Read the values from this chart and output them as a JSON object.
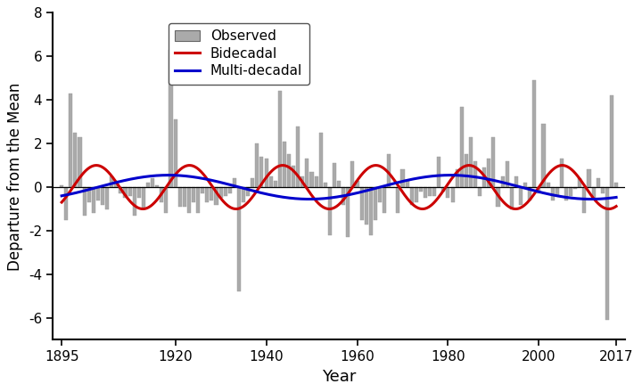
{
  "years": [
    1895,
    1896,
    1897,
    1898,
    1899,
    1900,
    1901,
    1902,
    1903,
    1904,
    1905,
    1906,
    1907,
    1908,
    1909,
    1910,
    1911,
    1912,
    1913,
    1914,
    1915,
    1916,
    1917,
    1918,
    1919,
    1920,
    1921,
    1922,
    1923,
    1924,
    1925,
    1926,
    1927,
    1928,
    1929,
    1930,
    1931,
    1932,
    1933,
    1934,
    1935,
    1936,
    1937,
    1938,
    1939,
    1940,
    1941,
    1942,
    1943,
    1944,
    1945,
    1946,
    1947,
    1948,
    1949,
    1950,
    1951,
    1952,
    1953,
    1954,
    1955,
    1956,
    1957,
    1958,
    1959,
    1960,
    1961,
    1962,
    1963,
    1964,
    1965,
    1966,
    1967,
    1968,
    1969,
    1970,
    1971,
    1972,
    1973,
    1974,
    1975,
    1976,
    1977,
    1978,
    1979,
    1980,
    1981,
    1982,
    1983,
    1984,
    1985,
    1986,
    1987,
    1988,
    1989,
    1990,
    1991,
    1992,
    1993,
    1994,
    1995,
    1996,
    1997,
    1998,
    1999,
    2000,
    2001,
    2002,
    2003,
    2004,
    2005,
    2006,
    2007,
    2008,
    2009,
    2010,
    2011,
    2012,
    2013,
    2014,
    2015,
    2016,
    2017
  ],
  "observed": [
    0.1,
    -1.5,
    4.3,
    2.5,
    2.3,
    -1.3,
    -0.7,
    -1.2,
    -0.6,
    -0.8,
    -1.0,
    0.5,
    0.3,
    -0.3,
    -0.5,
    -0.4,
    -1.3,
    -0.5,
    -1.0,
    0.2,
    0.4,
    0.1,
    -0.7,
    -1.2,
    6.3,
    3.1,
    -0.9,
    -0.9,
    -1.2,
    -0.7,
    -1.2,
    -0.3,
    -0.7,
    -0.6,
    -0.8,
    -0.5,
    -0.4,
    -0.3,
    0.4,
    -4.8,
    -0.7,
    -0.4,
    0.4,
    2.0,
    1.4,
    1.3,
    0.5,
    0.3,
    4.4,
    2.1,
    1.5,
    1.0,
    2.8,
    0.5,
    1.3,
    0.7,
    0.5,
    2.5,
    0.2,
    -2.2,
    1.1,
    0.3,
    -0.8,
    -2.3,
    1.2,
    0.3,
    -1.5,
    -1.7,
    -2.2,
    -1.5,
    -0.7,
    -1.2,
    1.5,
    0.0,
    -1.2,
    0.8,
    0.3,
    -0.8,
    -0.7,
    -0.2,
    -0.5,
    -0.4,
    -0.4,
    1.4,
    -0.2,
    -0.5,
    -0.7,
    0.8,
    3.7,
    1.5,
    2.3,
    1.2,
    -0.4,
    0.9,
    1.3,
    2.3,
    -0.9,
    0.5,
    1.2,
    -1.0,
    0.5,
    -0.8,
    0.2,
    -0.6,
    4.9,
    -0.3,
    2.9,
    0.2,
    -0.6,
    -0.4,
    1.3,
    -0.6,
    -0.4,
    -0.1,
    0.4,
    -1.2,
    0.8,
    -0.5,
    0.4,
    -0.3,
    -6.1,
    4.2,
    0.2
  ],
  "bar_color": "#aaaaaa",
  "bar_edge_color": "#999999",
  "bidecadal_color": "#cc0000",
  "multidecadal_color": "#0000cc",
  "ylabel": "Departure from the Mean",
  "xlabel": "Year",
  "ylim": [
    -7,
    8
  ],
  "yticks": [
    -6,
    -4,
    -2,
    0,
    2,
    4,
    6,
    8
  ],
  "xlim": [
    1893,
    2019
  ],
  "xticks": [
    1895,
    1920,
    1940,
    1960,
    1980,
    2000,
    2017
  ],
  "legend_labels": [
    "Observed",
    "Bidecadal",
    "Multi-decadal"
  ],
  "line_width": 2.2,
  "bar_width": 0.8,
  "bidecadal_amp": 1.0,
  "bidecadal_period": 20.5,
  "bidecadal_phase": 1897.5,
  "multidecadal_amp": 0.55,
  "multidecadal_period": 62.0,
  "multidecadal_phase": 1903.0
}
